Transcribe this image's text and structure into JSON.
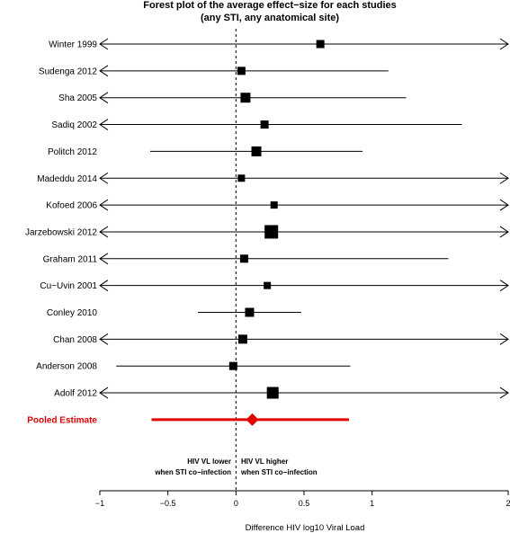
{
  "chart_data": {
    "type": "forest",
    "title_line1": "Forest plot of the average effect−size for each studies",
    "title_line2": "(any STI, any anatomical site)",
    "xlabel": "Difference HIV log10 Viral Load",
    "xlim": [
      -1,
      2
    ],
    "xticks": [
      -1,
      -0.5,
      0,
      0.5,
      1,
      2
    ],
    "xtick_labels": [
      "−1",
      "−0.5",
      "0",
      "0.5",
      "1",
      "2"
    ],
    "studies": [
      {
        "name": "Winter 1999",
        "est": 0.62,
        "lo": -1,
        "hi": 2,
        "arrow_left": true,
        "arrow_right": true,
        "size": 9
      },
      {
        "name": "Sudenga 2012",
        "est": 0.04,
        "lo": -1,
        "hi": 1.12,
        "arrow_left": true,
        "arrow_right": false,
        "size": 9
      },
      {
        "name": "Sha 2005",
        "est": 0.07,
        "lo": -1,
        "hi": 1.25,
        "arrow_left": true,
        "arrow_right": false,
        "size": 11
      },
      {
        "name": "Sadiq 2002",
        "est": 0.21,
        "lo": -1,
        "hi": 1.66,
        "arrow_left": true,
        "arrow_right": false,
        "size": 9
      },
      {
        "name": "Politch 2012",
        "est": 0.15,
        "lo": -0.63,
        "hi": 0.93,
        "arrow_left": false,
        "arrow_right": false,
        "size": 11
      },
      {
        "name": "Madeddu 2014",
        "est": 0.04,
        "lo": -1,
        "hi": 2,
        "arrow_left": true,
        "arrow_right": true,
        "size": 8
      },
      {
        "name": "Kofoed 2006",
        "est": 0.28,
        "lo": -1,
        "hi": 2,
        "arrow_left": true,
        "arrow_right": true,
        "size": 8
      },
      {
        "name": "Jarzebowski 2012",
        "est": 0.26,
        "lo": -1,
        "hi": 2,
        "arrow_left": true,
        "arrow_right": true,
        "size": 15
      },
      {
        "name": "Graham 2011",
        "est": 0.06,
        "lo": -1,
        "hi": 1.56,
        "arrow_left": true,
        "arrow_right": false,
        "size": 9
      },
      {
        "name": "Cu−Uvin 2001",
        "est": 0.23,
        "lo": -1,
        "hi": 2,
        "arrow_left": true,
        "arrow_right": true,
        "size": 8
      },
      {
        "name": "Conley 2010",
        "est": 0.1,
        "lo": -0.28,
        "hi": 0.48,
        "arrow_left": false,
        "arrow_right": false,
        "size": 10
      },
      {
        "name": "Chan 2008",
        "est": 0.05,
        "lo": -1,
        "hi": 2,
        "arrow_left": true,
        "arrow_right": true,
        "size": 10
      },
      {
        "name": "Anderson 2008",
        "est": -0.02,
        "lo": -0.88,
        "hi": 0.84,
        "arrow_left": false,
        "arrow_right": false,
        "size": 9
      },
      {
        "name": "Adolf 2012",
        "est": 0.27,
        "lo": -1,
        "hi": 2,
        "arrow_left": true,
        "arrow_right": true,
        "size": 13
      }
    ],
    "pooled": {
      "name": "Pooled Estimate",
      "est": 0.12,
      "lo": -0.62,
      "hi": 0.83
    },
    "annotation_left": [
      "HIV VL lower",
      "when STI co−infection"
    ],
    "annotation_right": [
      "HIV VL higher",
      "when STI co−infection"
    ],
    "reference_line_x": 0,
    "colors": {
      "pooled": "#e00000",
      "marks": "#000000"
    }
  }
}
